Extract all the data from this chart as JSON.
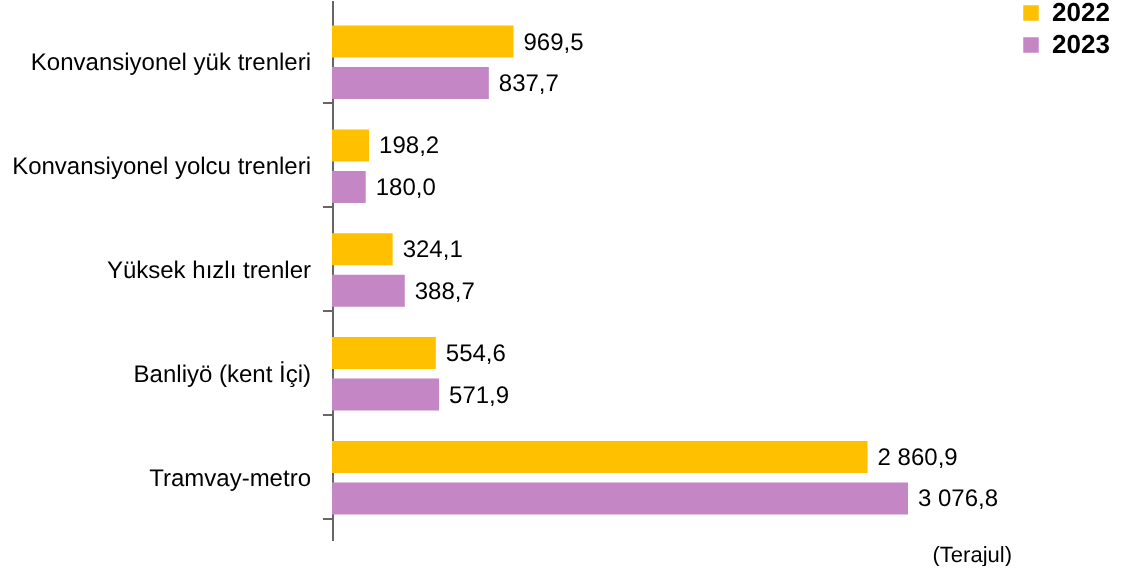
{
  "chart_data": {
    "type": "bar",
    "orientation": "horizontal",
    "categories": [
      "Konvansiyonel yük trenleri",
      "Konvansiyonel yolcu trenleri",
      "Yüksek hızlı trenler",
      "Banliyö (kent İçi)",
      "Tramvay-metro"
    ],
    "series": [
      {
        "name": "2022",
        "color": "#ffc000",
        "values": [
          969.5,
          198.2,
          324.1,
          554.6,
          2860.9
        ],
        "value_labels": [
          "969,5",
          "198,2",
          "324,1",
          "554,6",
          "2 860,9"
        ]
      },
      {
        "name": "2023",
        "color": "#c486c4",
        "values": [
          837.7,
          180.0,
          388.7,
          571.9,
          3076.8
        ],
        "value_labels": [
          "837,7",
          "180,0",
          "388,7",
          "571,9",
          "3 076,8"
        ]
      }
    ],
    "tick_labels": "y",
    "legend": "right",
    "annotations": [
      "(Terajul)"
    ]
  }
}
